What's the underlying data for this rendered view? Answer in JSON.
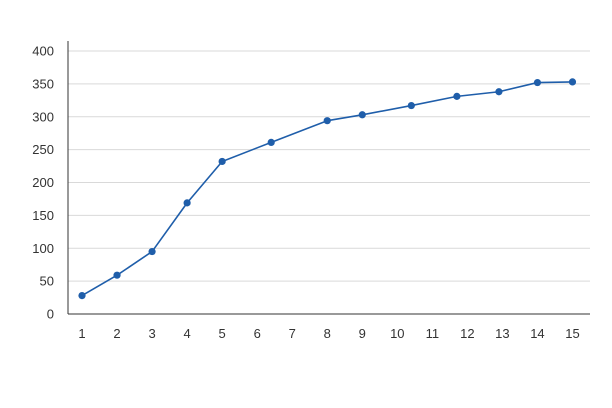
{
  "chart_data": {
    "type": "line",
    "title": "",
    "xlabel": "",
    "ylabel": "",
    "x": [
      1,
      2,
      3,
      4,
      5,
      6,
      7,
      8,
      9,
      10,
      11,
      12,
      13,
      14,
      15
    ],
    "x_tick_labels": [
      "1",
      "2",
      "3",
      "4",
      "5",
      "6",
      "7",
      "8",
      "9",
      "10",
      "11",
      "12",
      "13",
      "14",
      "15"
    ],
    "series": [
      {
        "values": [
          28,
          59,
          95,
          169,
          232,
          261,
          294,
          303,
          317,
          331,
          338,
          352,
          353
        ],
        "x": [
          1,
          2,
          3,
          4,
          5,
          6.4,
          8,
          9,
          10.4,
          11.7,
          12.9,
          14,
          15
        ],
        "color": "#1f5eaa"
      }
    ],
    "ylim": [
      0,
      400
    ],
    "y_ticks": [
      0,
      50,
      100,
      150,
      200,
      250,
      300,
      350,
      400
    ],
    "y_tick_labels": [
      "0",
      "50",
      "100",
      "150",
      "200",
      "250",
      "300",
      "350",
      "400"
    ],
    "xlim": [
      0.6,
      15.5
    ],
    "grid": {
      "horizontal": true,
      "vertical": false,
      "color": "#d9d9d9"
    },
    "legend": "none",
    "marker": "circle"
  }
}
